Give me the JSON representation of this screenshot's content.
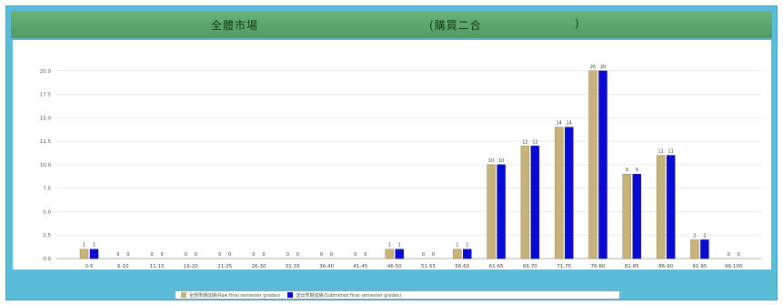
{
  "header": {
    "title_left": "全體市場",
    "title_mid": "(購買二合",
    "title_right": ")"
  },
  "colors": {
    "series_a": "#c7b27a",
    "series_b": "#0a0ad6",
    "frame": "#5bbcd9",
    "title_band": "#5aa86c",
    "grid": "#dddddd"
  },
  "chart_data": {
    "type": "bar",
    "title": "全體市場 (購買二合 )",
    "xlabel": "",
    "ylabel": "",
    "ylim": [
      0,
      22.5
    ],
    "yticks": [
      "0.0",
      "2.5",
      "5.0",
      "7.5",
      "10.0",
      "12.5",
      "15.0",
      "17.5",
      "20.0"
    ],
    "grid": true,
    "legend": "bottom",
    "categories": [
      "0-5",
      "6-10",
      "11-15",
      "16-20",
      "21-25",
      "26-30",
      "31-35",
      "36-40",
      "41-45",
      "46-50",
      "51-55",
      "56-60",
      "61-65",
      "66-70",
      "71-75",
      "76-80",
      "81-85",
      "86-90",
      "91-95",
      "96-100"
    ],
    "series": [
      {
        "name": "全部學期成績(Raw final semester grades)",
        "values": [
          1,
          0,
          0,
          0,
          0,
          0,
          0,
          0,
          0,
          1,
          0,
          1,
          10,
          12,
          14,
          20,
          9,
          11,
          2,
          0
        ]
      },
      {
        "name": "送出學期成績(Submitted final semester grades)",
        "values": [
          1,
          0,
          0,
          0,
          0,
          0,
          0,
          0,
          0,
          1,
          0,
          1,
          10,
          12,
          14,
          20,
          9,
          11,
          2,
          0
        ]
      }
    ]
  }
}
